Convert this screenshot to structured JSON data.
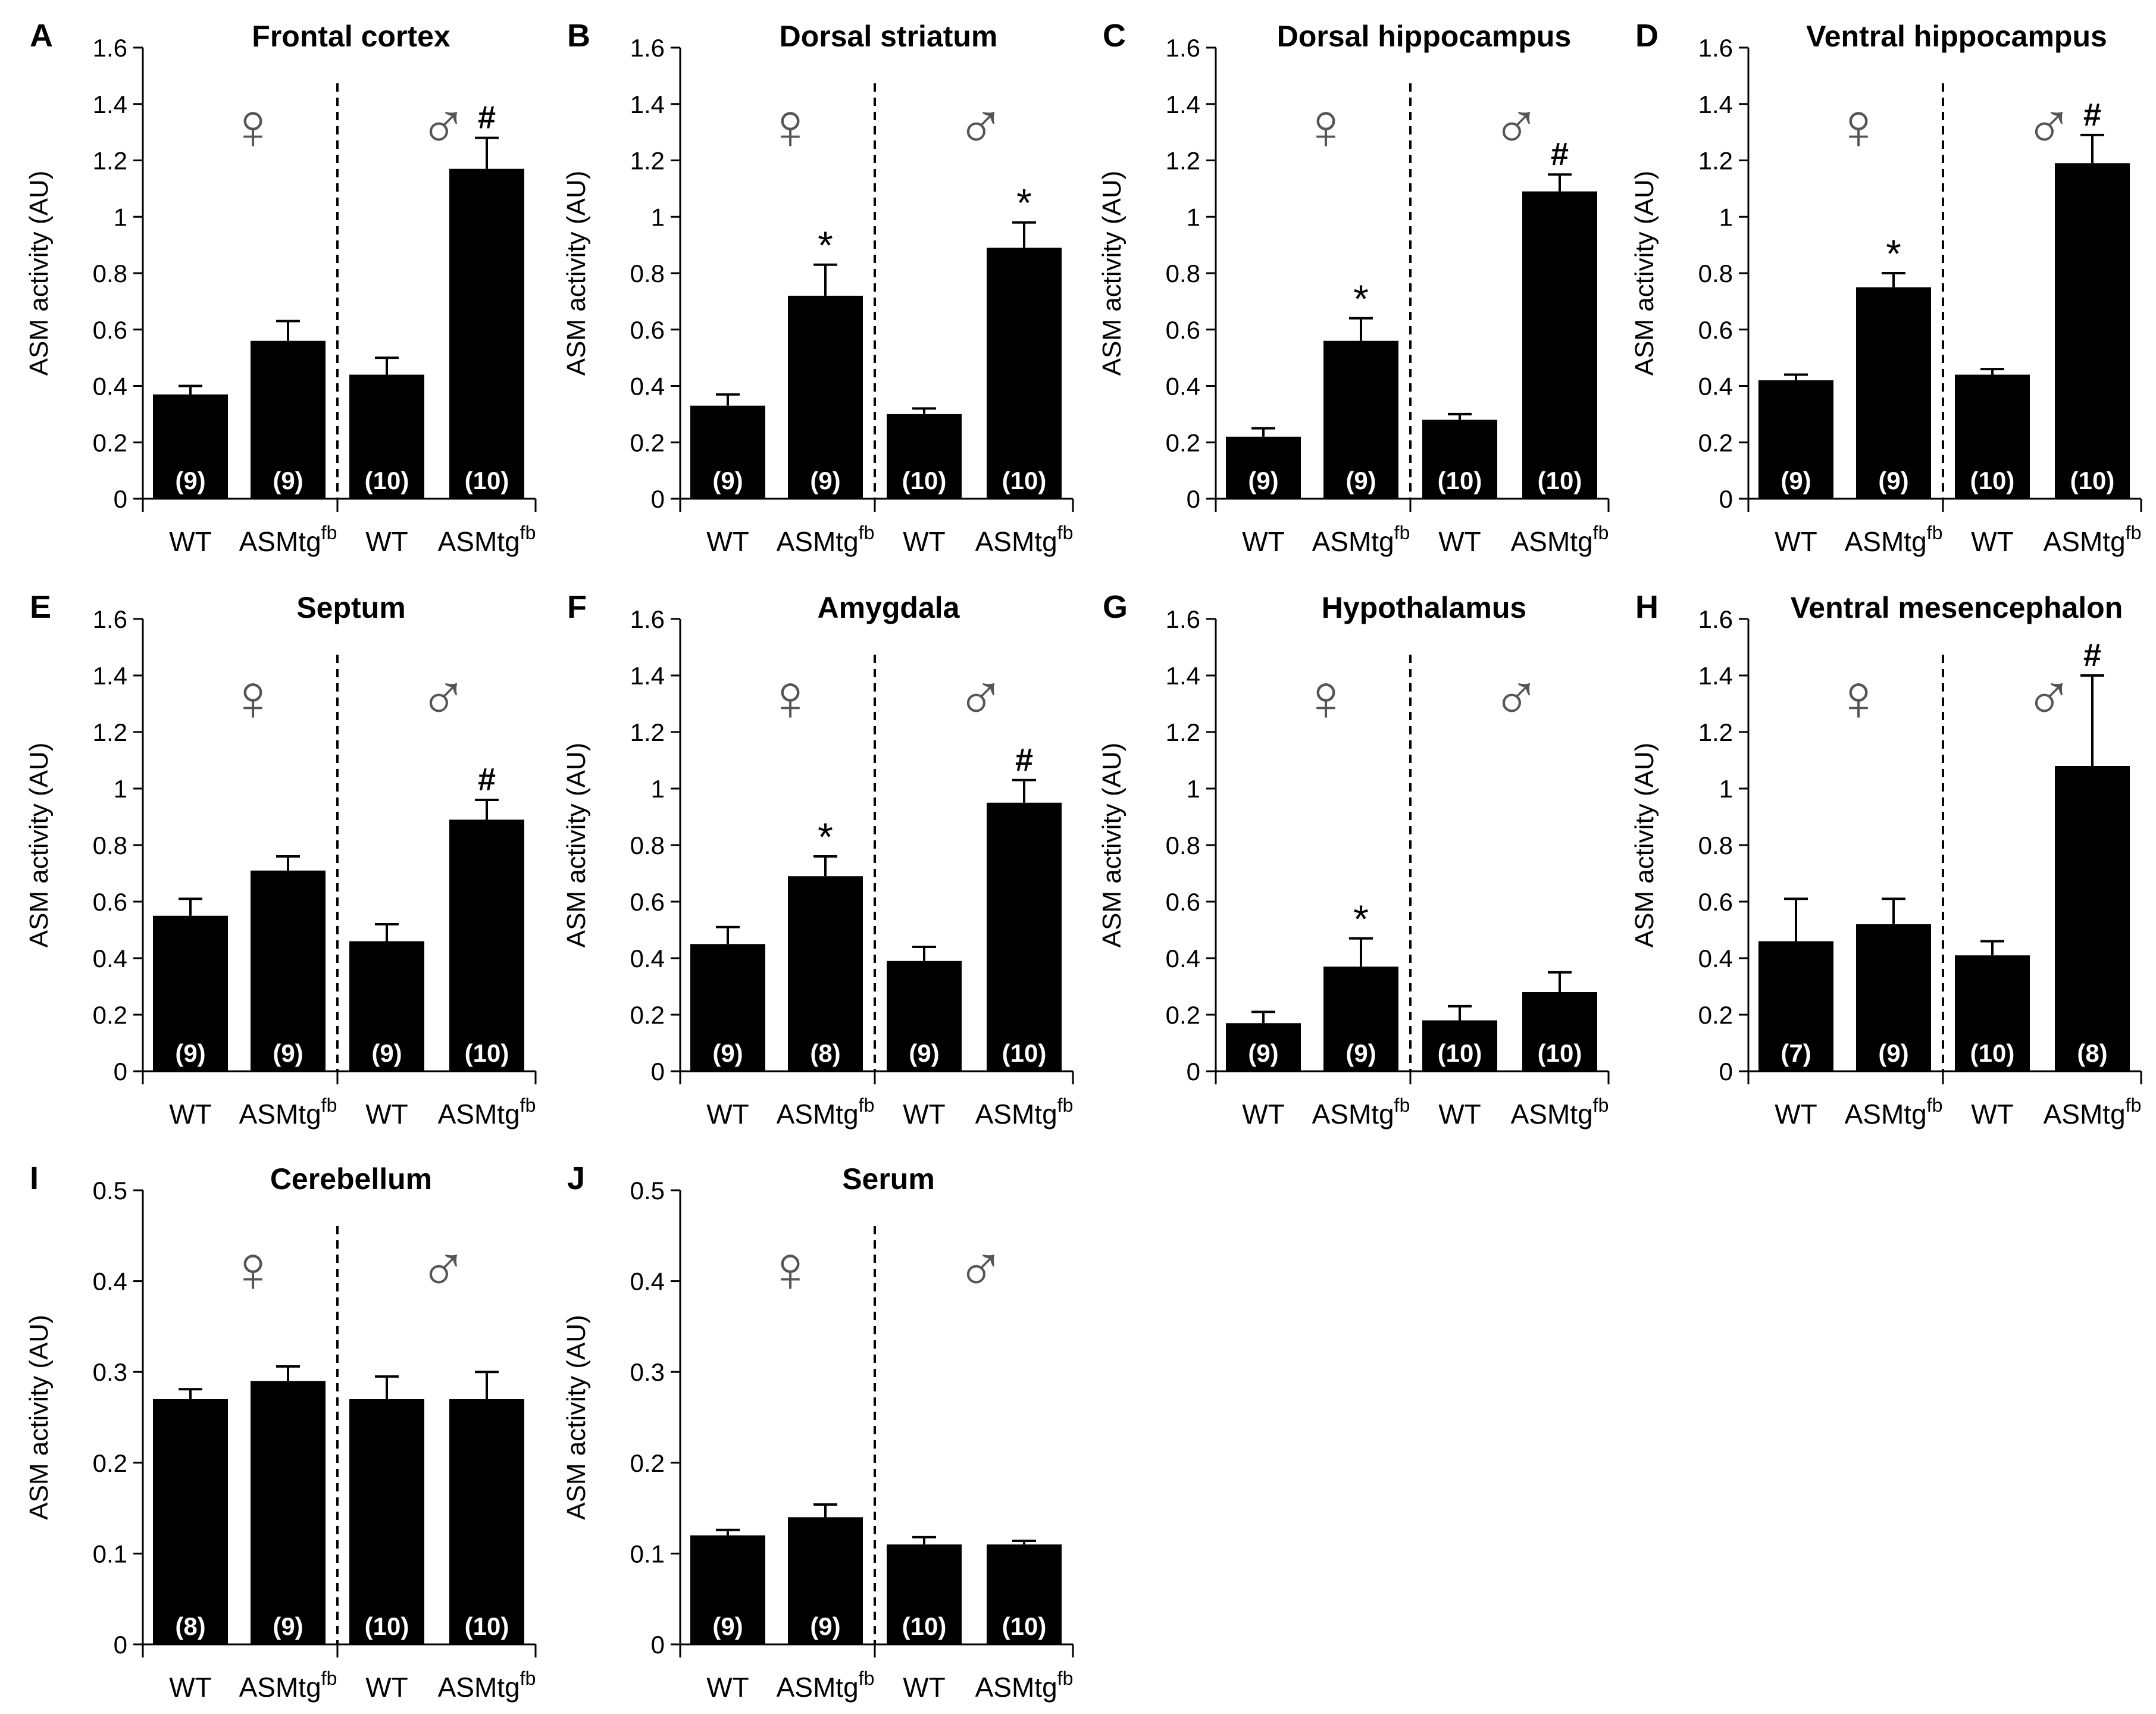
{
  "figure": {
    "y_axis_label": "ASM activity (AU)"
  },
  "chart_data": [
    {
      "panel": "A",
      "title": "Frontal cortex",
      "type": "bar",
      "categories": [
        "WT",
        "ASMtg",
        "WT",
        "ASMtg"
      ],
      "category_superscripts": [
        "",
        "fb",
        "",
        "fb"
      ],
      "groups": [
        {
          "symbol": "♀"
        },
        {
          "symbol": "♂"
        }
      ],
      "values": [
        0.37,
        0.56,
        0.44,
        1.17
      ],
      "errors": [
        0.03,
        0.07,
        0.06,
        0.11
      ],
      "n_labels": [
        "(9)",
        "(9)",
        "(10)",
        "(10)"
      ],
      "significance": [
        "",
        "",
        "",
        "#"
      ],
      "ylim": [
        0,
        1.6
      ],
      "yticks": [
        0,
        0.2,
        0.4,
        0.6,
        0.8,
        1,
        1.2,
        1.4,
        1.6
      ],
      "ytick_labels": [
        "0",
        "0.2",
        "0.4",
        "0.6",
        "0.8",
        "1",
        "1.2",
        "1.4",
        "1.6"
      ]
    },
    {
      "panel": "B",
      "title": "Dorsal striatum",
      "type": "bar",
      "categories": [
        "WT",
        "ASMtg",
        "WT",
        "ASMtg"
      ],
      "category_superscripts": [
        "",
        "fb",
        "",
        "fb"
      ],
      "groups": [
        {
          "symbol": "♀"
        },
        {
          "symbol": "♂"
        }
      ],
      "values": [
        0.33,
        0.72,
        0.3,
        0.89
      ],
      "errors": [
        0.04,
        0.11,
        0.02,
        0.09
      ],
      "n_labels": [
        "(9)",
        "(9)",
        "(10)",
        "(10)"
      ],
      "significance": [
        "",
        "*",
        "",
        "*"
      ],
      "ylim": [
        0,
        1.6
      ],
      "yticks": [
        0,
        0.2,
        0.4,
        0.6,
        0.8,
        1,
        1.2,
        1.4,
        1.6
      ],
      "ytick_labels": [
        "0",
        "0.2",
        "0.4",
        "0.6",
        "0.8",
        "1",
        "1.2",
        "1.4",
        "1.6"
      ]
    },
    {
      "panel": "C",
      "title": "Dorsal hippocampus",
      "type": "bar",
      "categories": [
        "WT",
        "ASMtg",
        "WT",
        "ASMtg"
      ],
      "category_superscripts": [
        "",
        "fb",
        "",
        "fb"
      ],
      "groups": [
        {
          "symbol": "♀"
        },
        {
          "symbol": "♂"
        }
      ],
      "values": [
        0.22,
        0.56,
        0.28,
        1.09
      ],
      "errors": [
        0.03,
        0.08,
        0.02,
        0.06
      ],
      "n_labels": [
        "(9)",
        "(9)",
        "(10)",
        "(10)"
      ],
      "significance": [
        "",
        "*",
        "",
        "#"
      ],
      "ylim": [
        0,
        1.6
      ],
      "yticks": [
        0,
        0.2,
        0.4,
        0.6,
        0.8,
        1,
        1.2,
        1.4,
        1.6
      ],
      "ytick_labels": [
        "0",
        "0.2",
        "0.4",
        "0.6",
        "0.8",
        "1",
        "1.2",
        "1.4",
        "1.6"
      ]
    },
    {
      "panel": "D",
      "title": "Ventral hippocampus",
      "type": "bar",
      "categories": [
        "WT",
        "ASMtg",
        "WT",
        "ASMtg"
      ],
      "category_superscripts": [
        "",
        "fb",
        "",
        "fb"
      ],
      "groups": [
        {
          "symbol": "♀"
        },
        {
          "symbol": "♂"
        }
      ],
      "values": [
        0.42,
        0.75,
        0.44,
        1.19
      ],
      "errors": [
        0.02,
        0.05,
        0.02,
        0.1
      ],
      "n_labels": [
        "(9)",
        "(9)",
        "(10)",
        "(10)"
      ],
      "significance": [
        "",
        "*",
        "",
        "#"
      ],
      "ylim": [
        0,
        1.6
      ],
      "yticks": [
        0,
        0.2,
        0.4,
        0.6,
        0.8,
        1,
        1.2,
        1.4,
        1.6
      ],
      "ytick_labels": [
        "0",
        "0.2",
        "0.4",
        "0.6",
        "0.8",
        "1",
        "1.2",
        "1.4",
        "1.6"
      ]
    },
    {
      "panel": "E",
      "title": "Septum",
      "type": "bar",
      "categories": [
        "WT",
        "ASMtg",
        "WT",
        "ASMtg"
      ],
      "category_superscripts": [
        "",
        "fb",
        "",
        "fb"
      ],
      "groups": [
        {
          "symbol": "♀"
        },
        {
          "symbol": "♂"
        }
      ],
      "values": [
        0.55,
        0.71,
        0.46,
        0.89
      ],
      "errors": [
        0.06,
        0.05,
        0.06,
        0.07
      ],
      "n_labels": [
        "(9)",
        "(9)",
        "(9)",
        "(10)"
      ],
      "significance": [
        "",
        "",
        "",
        "#"
      ],
      "ylim": [
        0,
        1.6
      ],
      "yticks": [
        0,
        0.2,
        0.4,
        0.6,
        0.8,
        1,
        1.2,
        1.4,
        1.6
      ],
      "ytick_labels": [
        "0",
        "0.2",
        "0.4",
        "0.6",
        "0.8",
        "1",
        "1.2",
        "1.4",
        "1.6"
      ]
    },
    {
      "panel": "F",
      "title": "Amygdala",
      "type": "bar",
      "categories": [
        "WT",
        "ASMtg",
        "WT",
        "ASMtg"
      ],
      "category_superscripts": [
        "",
        "fb",
        "",
        "fb"
      ],
      "groups": [
        {
          "symbol": "♀"
        },
        {
          "symbol": "♂"
        }
      ],
      "values": [
        0.45,
        0.69,
        0.39,
        0.95
      ],
      "errors": [
        0.06,
        0.07,
        0.05,
        0.08
      ],
      "n_labels": [
        "(9)",
        "(8)",
        "(9)",
        "(10)"
      ],
      "significance": [
        "",
        "*",
        "",
        "#"
      ],
      "ylim": [
        0,
        1.6
      ],
      "yticks": [
        0,
        0.2,
        0.4,
        0.6,
        0.8,
        1,
        1.2,
        1.4,
        1.6
      ],
      "ytick_labels": [
        "0",
        "0.2",
        "0.4",
        "0.6",
        "0.8",
        "1",
        "1.2",
        "1.4",
        "1.6"
      ]
    },
    {
      "panel": "G",
      "title": "Hypothalamus",
      "type": "bar",
      "categories": [
        "WT",
        "ASMtg",
        "WT",
        "ASMtg"
      ],
      "category_superscripts": [
        "",
        "fb",
        "",
        "fb"
      ],
      "groups": [
        {
          "symbol": "♀"
        },
        {
          "symbol": "♂"
        }
      ],
      "values": [
        0.17,
        0.37,
        0.18,
        0.28
      ],
      "errors": [
        0.04,
        0.1,
        0.05,
        0.07
      ],
      "n_labels": [
        "(9)",
        "(9)",
        "(10)",
        "(10)"
      ],
      "significance": [
        "",
        "*",
        "",
        ""
      ],
      "ylim": [
        0,
        1.6
      ],
      "yticks": [
        0,
        0.2,
        0.4,
        0.6,
        0.8,
        1,
        1.2,
        1.4,
        1.6
      ],
      "ytick_labels": [
        "0",
        "0.2",
        "0.4",
        "0.6",
        "0.8",
        "1",
        "1.2",
        "1.4",
        "1.6"
      ]
    },
    {
      "panel": "H",
      "title": "Ventral mesencephalon",
      "type": "bar",
      "categories": [
        "WT",
        "ASMtg",
        "WT",
        "ASMtg"
      ],
      "category_superscripts": [
        "",
        "fb",
        "",
        "fb"
      ],
      "groups": [
        {
          "symbol": "♀"
        },
        {
          "symbol": "♂"
        }
      ],
      "values": [
        0.46,
        0.52,
        0.41,
        1.08
      ],
      "errors": [
        0.15,
        0.09,
        0.05,
        0.32
      ],
      "n_labels": [
        "(7)",
        "(9)",
        "(10)",
        "(8)"
      ],
      "significance": [
        "",
        "",
        "",
        "#"
      ],
      "ylim": [
        0,
        1.6
      ],
      "yticks": [
        0,
        0.2,
        0.4,
        0.6,
        0.8,
        1,
        1.2,
        1.4,
        1.6
      ],
      "ytick_labels": [
        "0",
        "0.2",
        "0.4",
        "0.6",
        "0.8",
        "1",
        "1.2",
        "1.4",
        "1.6"
      ]
    },
    {
      "panel": "I",
      "title": "Cerebellum",
      "type": "bar",
      "categories": [
        "WT",
        "ASMtg",
        "WT",
        "ASMtg"
      ],
      "category_superscripts": [
        "",
        "fb",
        "",
        "fb"
      ],
      "groups": [
        {
          "symbol": "♀"
        },
        {
          "symbol": "♂"
        }
      ],
      "values": [
        0.27,
        0.29,
        0.27,
        0.27
      ],
      "errors": [
        0.011,
        0.016,
        0.025,
        0.03
      ],
      "n_labels": [
        "(8)",
        "(9)",
        "(10)",
        "(10)"
      ],
      "significance": [
        "",
        "",
        "",
        ""
      ],
      "ylim": [
        0,
        0.5
      ],
      "yticks": [
        0,
        0.1,
        0.2,
        0.3,
        0.4,
        0.5
      ],
      "ytick_labels": [
        "0",
        "0.1",
        "0.2",
        "0.3",
        "0.4",
        "0.5"
      ]
    },
    {
      "panel": "J",
      "title": "Serum",
      "type": "bar",
      "categories": [
        "WT",
        "ASMtg",
        "WT",
        "ASMtg"
      ],
      "category_superscripts": [
        "",
        "fb",
        "",
        "fb"
      ],
      "groups": [
        {
          "symbol": "♀"
        },
        {
          "symbol": "♂"
        }
      ],
      "values": [
        0.12,
        0.14,
        0.11,
        0.11
      ],
      "errors": [
        0.006,
        0.014,
        0.008,
        0.004
      ],
      "n_labels": [
        "(9)",
        "(9)",
        "(10)",
        "(10)"
      ],
      "significance": [
        "",
        "",
        "",
        ""
      ],
      "ylim": [
        0,
        0.5
      ],
      "yticks": [
        0,
        0.1,
        0.2,
        0.3,
        0.4,
        0.5
      ],
      "ytick_labels": [
        "0",
        "0.1",
        "0.2",
        "0.3",
        "0.4",
        "0.5"
      ]
    }
  ]
}
